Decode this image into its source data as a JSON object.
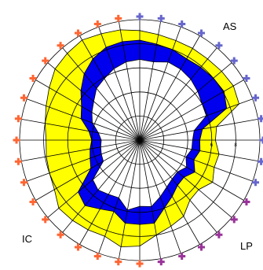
{
  "chart_data": {
    "type": "radar",
    "title": "",
    "axes_count": 36,
    "rlim": [
      0,
      10
    ],
    "ring_values": [
      2,
      4,
      6,
      8,
      10
    ],
    "tick_labels": [
      {
        "value": 6,
        "text": "6"
      },
      {
        "value": 8,
        "text": "8"
      }
    ],
    "series": [
      {
        "fill": "#ffff00",
        "values": [
          9.1,
          8.9,
          8.8,
          8.8,
          8.8,
          8.9,
          9.0,
          8.8,
          6.5,
          6.3,
          6.7,
          6.6,
          7.0,
          6.4,
          6.5,
          7.3,
          7.6,
          8.0,
          8.8,
          9.0,
          8.5,
          8.6,
          8.7,
          8.8,
          8.2,
          8.0,
          7.9,
          7.8,
          8.0,
          8.3,
          8.7,
          9.2,
          9.4,
          9.6,
          9.4,
          9.3
        ]
      },
      {
        "fill": "#0000ee",
        "values": [
          8.3,
          8.1,
          8.0,
          7.8,
          7.9,
          8.0,
          8.1,
          7.7,
          5.3,
          5.0,
          5.1,
          4.8,
          5.3,
          4.8,
          4.9,
          5.4,
          6.0,
          7.0,
          7.0,
          7.0,
          6.3,
          6.6,
          7.1,
          6.7,
          4.7,
          4.4,
          4.2,
          4.0,
          4.3,
          5.2,
          5.6,
          6.4,
          7.2,
          7.8,
          8.2,
          8.3
        ]
      },
      {
        "fill": "#ffffff",
        "values": [
          6.7,
          6.6,
          6.9,
          6.8,
          6.6,
          6.3,
          6.0,
          5.9,
          4.6,
          4.4,
          4.4,
          4.1,
          4.5,
          4.1,
          4.2,
          4.5,
          5.0,
          5.6,
          5.5,
          5.9,
          5.1,
          5.2,
          5.4,
          5.1,
          3.5,
          3.4,
          3.3,
          3.2,
          3.5,
          4.2,
          4.6,
          5.0,
          5.6,
          5.9,
          6.3,
          6.6
        ]
      }
    ],
    "markers": {
      "groups": [
        {
          "label": "AS",
          "color": "#6666cc",
          "count": 12
        },
        {
          "label": "LP",
          "color": "#993399",
          "count": 6
        },
        {
          "label": "IC",
          "color": "#ff6633",
          "count": 18
        }
      ]
    },
    "region_labels": [
      {
        "name": "as",
        "text": "AS"
      },
      {
        "name": "lp",
        "text": "LP"
      },
      {
        "name": "ic",
        "text": "IC"
      }
    ]
  }
}
